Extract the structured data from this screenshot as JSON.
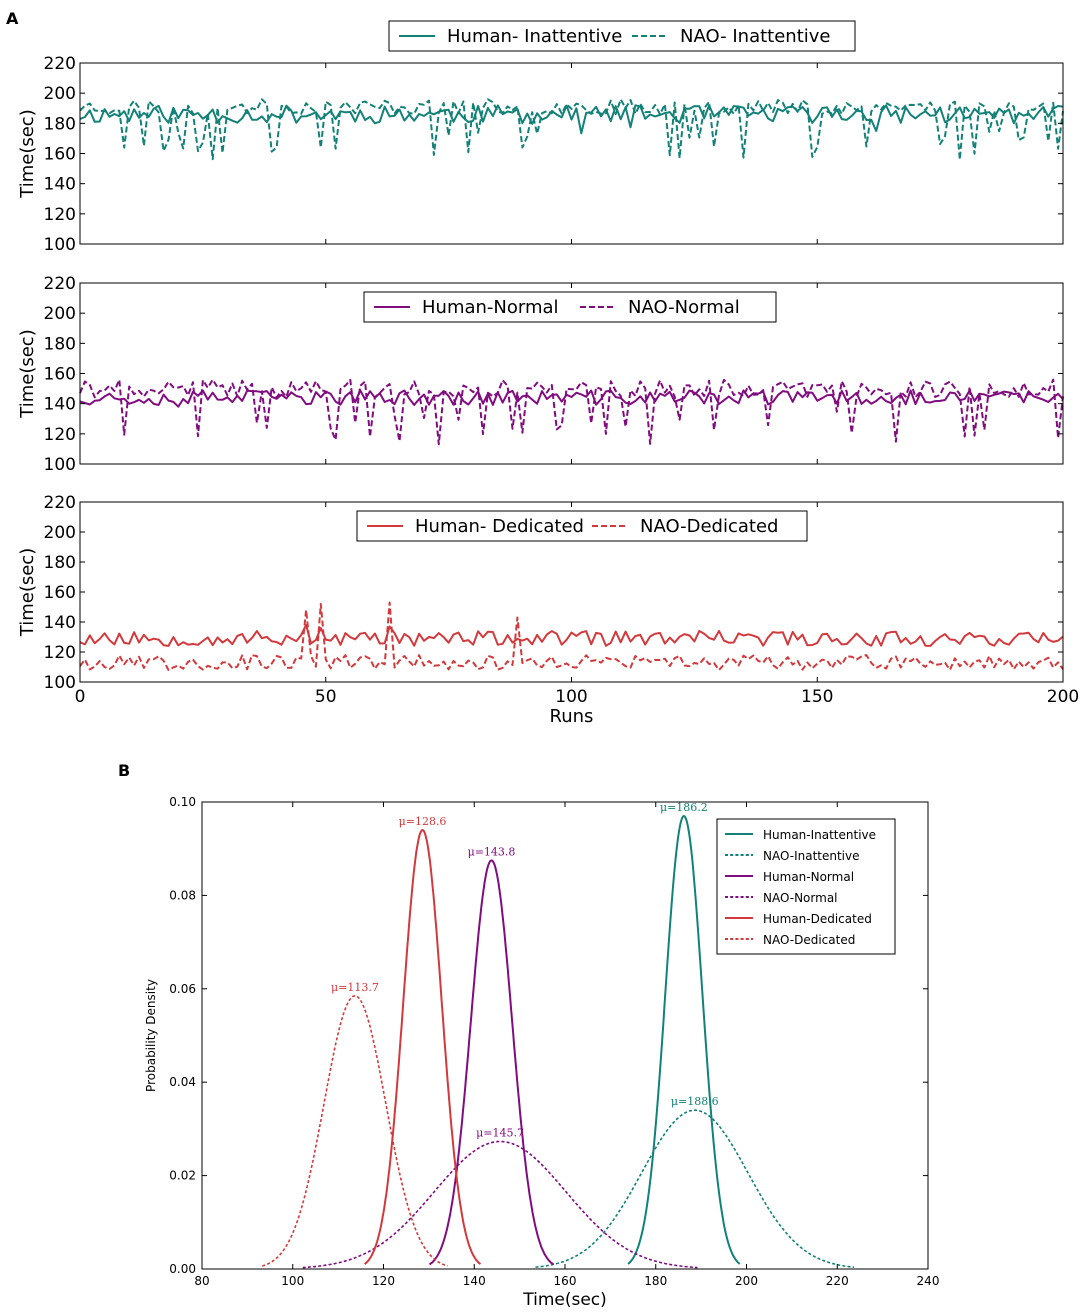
{
  "panel_labels": {
    "a": "A",
    "b": "B"
  },
  "colors": {
    "teal": "#128278",
    "purple": "#800c80",
    "red": "#d2393c",
    "axis": "#000000"
  },
  "chart_data": [
    {
      "id": "A1",
      "type": "line",
      "xlabel": "",
      "ylabel": "Time(sec)",
      "xlim": [
        0,
        200
      ],
      "ylim": [
        100,
        220
      ],
      "yticks": [
        100,
        120,
        140,
        160,
        180,
        200,
        220
      ],
      "xticks": [
        0,
        50,
        100,
        150,
        200
      ],
      "show_xtick_labels": false,
      "legend_position": "top-center",
      "series": [
        {
          "name": "Human- Inattentive",
          "style": "solid",
          "color": "#128278",
          "mean": 186,
          "amplitude": 6,
          "dip_rate": 0.03,
          "dip_depth": 8,
          "seed": 11
        },
        {
          "name": "NAO- Inattentive",
          "style": "dashed",
          "color": "#128278",
          "mean": 191,
          "amplitude": 5,
          "dip_rate": 0.15,
          "dip_depth": 32,
          "seed": 23
        }
      ]
    },
    {
      "id": "A2",
      "type": "line",
      "xlabel": "",
      "ylabel": "Time(sec)",
      "xlim": [
        0,
        200
      ],
      "ylim": [
        100,
        220
      ],
      "yticks": [
        100,
        120,
        140,
        160,
        180,
        200,
        220
      ],
      "xticks": [
        0,
        50,
        100,
        150,
        200
      ],
      "show_xtick_labels": false,
      "legend_position": "top-center",
      "series": [
        {
          "name": "Human-Normal",
          "style": "solid",
          "color": "#800c80",
          "mean": 144,
          "amplitude": 5,
          "dip_rate": 0.02,
          "dip_depth": 6,
          "seed": 37
        },
        {
          "name": "NAO-Normal",
          "style": "dashed",
          "color": "#800c80",
          "mean": 150,
          "amplitude": 6,
          "dip_rate": 0.17,
          "dip_depth": 34,
          "seed": 41
        }
      ]
    },
    {
      "id": "A3",
      "type": "line",
      "xlabel": "Runs",
      "ylabel": "Time(sec)",
      "xlim": [
        0,
        200
      ],
      "ylim": [
        100,
        220
      ],
      "yticks": [
        100,
        120,
        140,
        160,
        180,
        200,
        220
      ],
      "xticks": [
        0,
        50,
        100,
        150,
        200
      ],
      "show_xtick_labels": true,
      "legend_position": "top-center",
      "series": [
        {
          "name": "Human- Dedicated",
          "style": "solid",
          "color": "#d2393c",
          "mean": 129,
          "amplitude": 5,
          "dip_rate": 0.0,
          "dip_depth": 0,
          "seed": 53,
          "spikes": [
            [
              46,
              138
            ],
            [
              49,
              136
            ],
            [
              63,
              137
            ]
          ]
        },
        {
          "name": "NAO-Dedicated",
          "style": "dashed",
          "color": "#d2393c",
          "mean": 113,
          "amplitude": 5,
          "dip_rate": 0.0,
          "dip_depth": 0,
          "seed": 67,
          "spikes": [
            [
              46,
              148
            ],
            [
              49,
              152
            ],
            [
              63,
              153
            ],
            [
              89,
              143
            ]
          ]
        }
      ]
    },
    {
      "id": "B",
      "type": "line",
      "title": "",
      "xlabel": "Time(sec)",
      "ylabel": "Probability Density",
      "xlim": [
        80,
        240
      ],
      "ylim": [
        0.0,
        0.1
      ],
      "xticks": [
        80,
        100,
        120,
        140,
        160,
        180,
        200,
        220,
        240
      ],
      "yticks": [
        0.0,
        0.02,
        0.04,
        0.06,
        0.08,
        0.1
      ],
      "ytick_labels": [
        "0.00",
        "0.02",
        "0.04",
        "0.06",
        "0.08",
        "0.10"
      ],
      "legend_position": "top-right",
      "series": [
        {
          "name": "Human-Inattentive",
          "style": "solid",
          "color": "#128278",
          "mu": 186.2,
          "sigma": 4.1,
          "peak": 0.097,
          "label": "μ=186.2"
        },
        {
          "name": "NAO-Inattentive",
          "style": "dotted",
          "color": "#128278",
          "mu": 188.6,
          "sigma": 11.7,
          "peak": 0.034,
          "label": "μ=188.6"
        },
        {
          "name": "Human-Normal",
          "style": "solid",
          "color": "#800c80",
          "mu": 143.8,
          "sigma": 4.55,
          "peak": 0.0875,
          "label": "μ=143.8"
        },
        {
          "name": "NAO-Normal",
          "style": "dotted",
          "color": "#800c80",
          "mu": 145.7,
          "sigma": 14.5,
          "peak": 0.0273,
          "label": "μ=145.7"
        },
        {
          "name": "Human-Dedicated",
          "style": "solid",
          "color": "#d2393c",
          "mu": 128.6,
          "sigma": 4.25,
          "peak": 0.094,
          "label": "μ=128.6"
        },
        {
          "name": "NAO-Dedicated",
          "style": "dotted",
          "color": "#d2393c",
          "mu": 113.7,
          "sigma": 6.8,
          "peak": 0.0585,
          "label": "μ=113.7"
        }
      ]
    }
  ]
}
